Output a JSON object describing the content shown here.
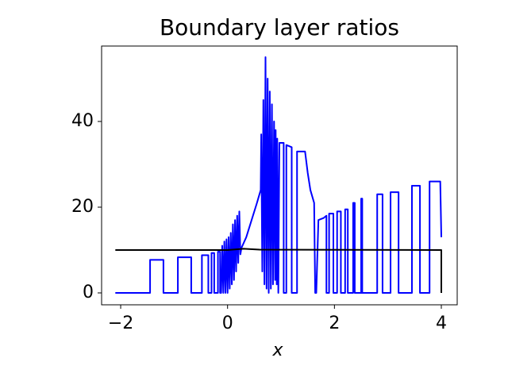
{
  "chart_data": {
    "type": "line",
    "title": "Boundary layer ratios",
    "x_label": "x",
    "xlim": [
      -2.357,
      4.297
    ],
    "ylim": [
      -2.78,
      57.6
    ],
    "xticks": [
      {
        "value": -2,
        "label": "−2"
      },
      0,
      2,
      4
    ],
    "yticks": [
      0,
      20,
      40
    ],
    "series": [
      {
        "color": "#0000ff",
        "x": [
          -2.1,
          -1.45,
          -1.45,
          -1.2,
          -1.2,
          -0.93,
          -0.93,
          -0.68,
          -0.68,
          -0.48,
          -0.48,
          -0.36,
          -0.36,
          -0.3,
          -0.3,
          -0.25,
          -0.25,
          -0.18,
          -0.18,
          -0.14,
          -0.14,
          -0.12,
          -0.1,
          -0.08,
          -0.06,
          -0.04,
          -0.02,
          0,
          0.02,
          0.04,
          0.06,
          0.08,
          0.1,
          0.12,
          0.14,
          0.16,
          0.18,
          0.2,
          0.22,
          0.24,
          0.26,
          0.35,
          0.45,
          0.55,
          0.62,
          0.63,
          0.65,
          0.67,
          0.69,
          0.71,
          0.73,
          0.75,
          0.77,
          0.79,
          0.81,
          0.83,
          0.85,
          0.87,
          0.89,
          0.9,
          0.92,
          0.93,
          0.95,
          0.97,
          1.05,
          1.05,
          1.1,
          1.1,
          1.2,
          1.2,
          1.3,
          1.3,
          1.45,
          1.5,
          1.55,
          1.62,
          1.64,
          1.66,
          1.7,
          1.8,
          1.85,
          1.85,
          1.9,
          1.9,
          1.98,
          1.98,
          2.05,
          2.05,
          2.12,
          2.12,
          2.2,
          2.2,
          2.25,
          2.25,
          2.35,
          2.35,
          2.38,
          2.38,
          2.5,
          2.5,
          2.52,
          2.52,
          2.8,
          2.8,
          2.9,
          2.9,
          3.05,
          3.05,
          3.2,
          3.2,
          3.45,
          3.45,
          3.6,
          3.6,
          3.78,
          3.78,
          3.98,
          4.0
        ],
        "values": [
          0,
          0,
          7.7,
          7.7,
          0,
          0,
          8.3,
          8.3,
          0,
          0,
          8.8,
          8.8,
          0,
          0,
          9.3,
          9.3,
          0,
          0,
          9.6,
          9.6,
          0,
          0,
          11,
          0,
          12,
          0,
          12.5,
          0,
          13,
          1,
          14,
          2,
          16,
          3,
          17,
          5,
          18,
          7,
          19,
          9,
          10.5,
          13,
          17,
          21,
          24,
          37,
          5,
          45,
          2,
          55,
          1,
          50,
          0,
          47,
          1,
          44,
          2,
          40,
          3,
          38,
          2,
          36,
          0,
          35,
          35,
          0,
          0,
          34.5,
          34,
          0,
          0,
          33,
          33,
          28,
          24,
          21,
          0,
          0,
          17,
          17.5,
          18,
          0,
          0,
          18.5,
          18.5,
          0,
          0,
          19,
          19,
          0,
          0,
          19.5,
          19.5,
          0,
          0,
          21,
          21,
          0,
          0,
          22,
          22,
          0,
          0,
          23,
          23,
          0,
          0,
          23.5,
          23.5,
          0,
          0,
          25,
          25,
          0,
          0,
          26,
          26,
          13
        ]
      },
      {
        "color": "#000000",
        "x": [
          -2.1,
          0,
          0.3,
          0.6,
          4.0,
          4.0
        ],
        "values": [
          10,
          10,
          10.3,
          10.1,
          10,
          0
        ]
      }
    ]
  }
}
